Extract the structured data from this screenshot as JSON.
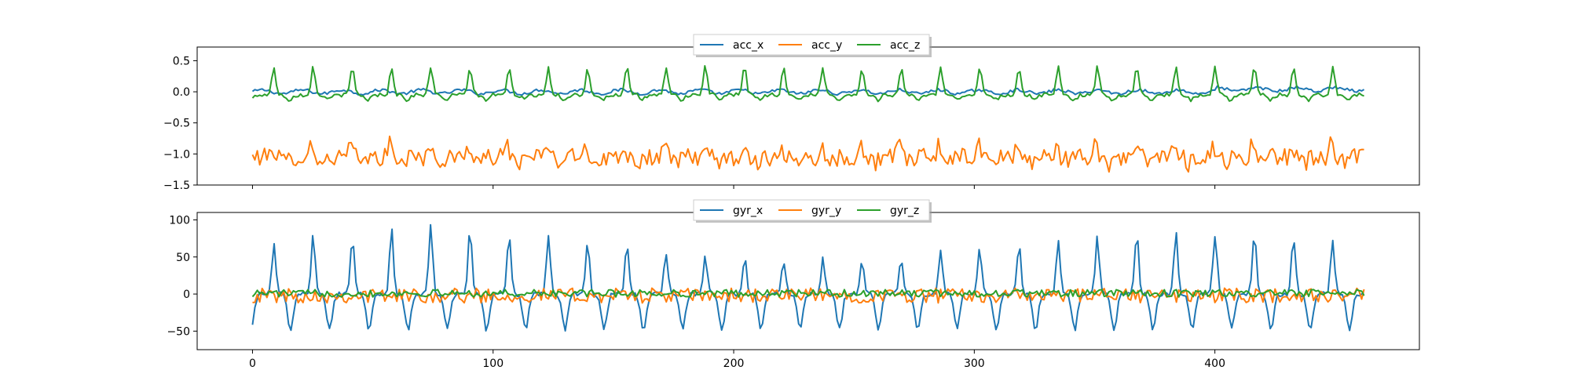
{
  "chart_data": [
    {
      "type": "line",
      "x_range": [
        0,
        462
      ],
      "xlim": [
        -23,
        485
      ],
      "ylim": [
        -1.5,
        0.72
      ],
      "yticks": [
        0.5,
        0.0,
        -0.5,
        -1.0,
        -1.5
      ],
      "ytick_labels": [
        "0.5",
        "0.0",
        "−0.5",
        "−1.0",
        "−1.5"
      ],
      "xticks": [
        0,
        100,
        200,
        300,
        400
      ],
      "xtick_labels": [
        "",
        "",
        "",
        "",
        ""
      ],
      "legend": {
        "placement": "top-center",
        "ncol": 3
      },
      "grid": false,
      "series": [
        {
          "name": "acc_x",
          "color": "#1f77b4",
          "pattern": "acc_x"
        },
        {
          "name": "acc_y",
          "color": "#ff7f0e",
          "pattern": "acc_y"
        },
        {
          "name": "acc_z",
          "color": "#2ca02c",
          "pattern": "acc_z"
        }
      ]
    },
    {
      "type": "line",
      "x_range": [
        0,
        462
      ],
      "xlim": [
        -23,
        485
      ],
      "ylim": [
        -75,
        110
      ],
      "yticks": [
        100,
        50,
        0,
        -50
      ],
      "ytick_labels": [
        "100",
        "50",
        "0",
        "−50"
      ],
      "xticks": [
        0,
        100,
        200,
        300,
        400
      ],
      "xtick_labels": [
        "0",
        "100",
        "200",
        "300",
        "400"
      ],
      "legend": {
        "placement": "top-center",
        "ncol": 3
      },
      "grid": false,
      "series": [
        {
          "name": "gyr_x",
          "color": "#1f77b4",
          "pattern": "gyr_x"
        },
        {
          "name": "gyr_y",
          "color": "#ff7f0e",
          "pattern": "gyr_y"
        },
        {
          "name": "gyr_z",
          "color": "#2ca02c",
          "pattern": "gyr_z"
        }
      ]
    }
  ]
}
